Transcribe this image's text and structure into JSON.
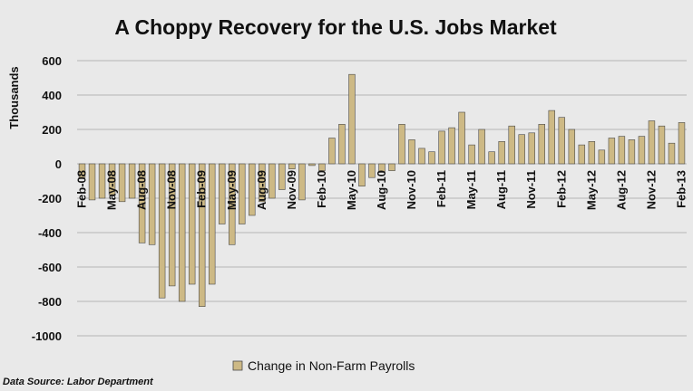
{
  "chart_data": {
    "type": "bar",
    "title": "A Choppy Recovery for the U.S. Jobs Market",
    "ylabel": "Thousands",
    "xlabel": "",
    "ylim": [
      -1000,
      600
    ],
    "yticks": [
      "600",
      "400",
      "200",
      "0",
      "-200",
      "-400",
      "-600",
      "-800",
      "-1000"
    ],
    "ytick_values": [
      600,
      400,
      200,
      0,
      -200,
      -400,
      -600,
      -800,
      -1000
    ],
    "grid": true,
    "legend_position": "bottom",
    "bar_color": "#cdb985",
    "bar_stroke": "#4a4a4a",
    "categories": [
      "Feb-08",
      "Mar-08",
      "Apr-08",
      "May-08",
      "Jun-08",
      "Jul-08",
      "Aug-08",
      "Sep-08",
      "Oct-08",
      "Nov-08",
      "Dec-08",
      "Jan-09",
      "Feb-09",
      "Mar-09",
      "Apr-09",
      "May-09",
      "Jun-09",
      "Jul-09",
      "Aug-09",
      "Sep-09",
      "Oct-09",
      "Nov-09",
      "Dec-09",
      "Jan-10",
      "Feb-10",
      "Mar-10",
      "Apr-10",
      "May-10",
      "Jun-10",
      "Jul-10",
      "Aug-10",
      "Sep-10",
      "Oct-10",
      "Nov-10",
      "Dec-10",
      "Jan-11",
      "Feb-11",
      "Mar-11",
      "Apr-11",
      "May-11",
      "Jun-11",
      "Jul-11",
      "Aug-11",
      "Sep-11",
      "Oct-11",
      "Nov-11",
      "Dec-11",
      "Jan-12",
      "Feb-12",
      "Mar-12",
      "Apr-12",
      "May-12",
      "Jun-12",
      "Jul-12",
      "Aug-12",
      "Sep-12",
      "Oct-12",
      "Nov-12",
      "Dec-12",
      "Jan-13",
      "Feb-13"
    ],
    "tick_labels": [
      "Feb-08",
      "May-08",
      "Aug-08",
      "Nov-08",
      "Feb-09",
      "May-09",
      "Aug-09",
      "Nov-09",
      "Feb-10",
      "May-10",
      "Aug-10",
      "Nov-10",
      "Feb-11",
      "May-11",
      "Aug-11",
      "Nov-11",
      "Feb-12",
      "May-12",
      "Aug-12",
      "Nov-12",
      "Feb-13"
    ],
    "series": [
      {
        "name": "Change in Non-Farm Payrolls",
        "values": [
          -80,
          -210,
          -200,
          -180,
          -220,
          -200,
          -460,
          -470,
          -780,
          -710,
          -800,
          -700,
          -830,
          -700,
          -350,
          -470,
          -350,
          -300,
          -220,
          -200,
          -150,
          -30,
          -210,
          -10,
          -40,
          150,
          230,
          520,
          -130,
          -80,
          -50,
          -40,
          230,
          140,
          90,
          70,
          190,
          210,
          300,
          110,
          200,
          70,
          130,
          220,
          170,
          180,
          230,
          310,
          270,
          200,
          110,
          130,
          80,
          150,
          160,
          140,
          160,
          250,
          220,
          120,
          240
        ]
      }
    ],
    "source": "Data Source: Labor Department"
  }
}
